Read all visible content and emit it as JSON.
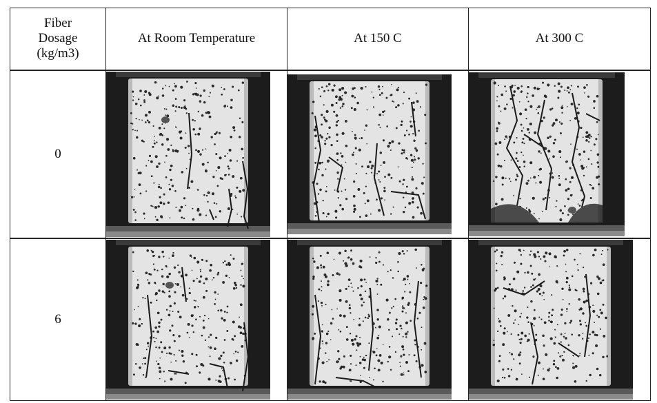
{
  "table": {
    "header": {
      "dosage_lines": [
        "Fiber",
        "Dosage",
        "(kg/m3)"
      ],
      "columns": [
        "At Room Temperature",
        "At 150 C",
        "At 300 C"
      ]
    },
    "rows": [
      {
        "dosage": "0",
        "photos": [
          {
            "name": "specimen-0-room-temperature",
            "condition": "minor edge cracks"
          },
          {
            "name": "specimen-0-150c",
            "condition": "several vertical cracks"
          },
          {
            "name": "specimen-0-300c",
            "condition": "heavy cracking and spalling"
          }
        ]
      },
      {
        "dosage": "6",
        "photos": [
          {
            "name": "specimen-6-room-temperature",
            "condition": "edge cracks"
          },
          {
            "name": "specimen-6-150c",
            "condition": "fine cracks"
          },
          {
            "name": "specimen-6-300c",
            "condition": "moderate cracks"
          }
        ]
      }
    ]
  },
  "colors": {
    "specimen_face": "#e4e4e4",
    "frame": "#1c1c1c",
    "pores": "#2a2a2a"
  }
}
